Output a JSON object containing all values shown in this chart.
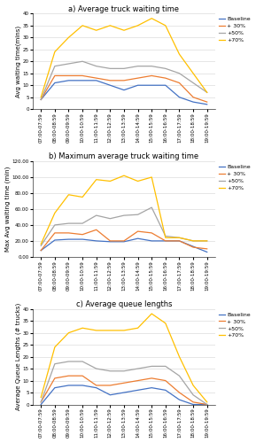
{
  "title_a": "a) Average truck waiting time",
  "title_b": "b) Maximum average truck waiting time",
  "title_c": "c) Average queue lengths",
  "ylabel_a": "Avg waiting time(mins)",
  "ylabel_b": "Max Avg waiting time (min)",
  "ylabel_c": "Average Queue Lengths (# trucks)",
  "x_labels": [
    "07:00-07:59",
    "08:00-08:59",
    "09:00-09:59",
    "10:00-10:59",
    "11:00-11:59",
    "12:00-12:59",
    "13:00-13:59",
    "14:00-14:59",
    "15:00-15:59",
    "16:00-16:59",
    "17:00-17:59",
    "18:00-18:59",
    "19:00-19:59"
  ],
  "legend_labels": [
    "Baseline",
    "+ 30%",
    "+50%",
    "+70%"
  ],
  "colors": [
    "#4472C4",
    "#ED7D31",
    "#A5A5A5",
    "#FFC000"
  ],
  "chart_a": {
    "baseline": [
      4,
      11,
      12,
      12,
      12,
      10,
      8,
      10,
      10,
      10,
      5,
      3,
      2
    ],
    "p30": [
      4,
      14,
      14,
      14,
      13,
      12,
      12,
      13,
      14,
      13,
      11,
      5,
      3
    ],
    "p50": [
      4,
      18,
      19,
      20,
      18,
      17,
      17,
      18,
      18,
      17,
      15,
      11,
      7
    ],
    "p70": [
      5,
      24,
      30,
      35,
      33,
      35,
      33,
      35,
      38,
      35,
      23,
      15,
      7
    ]
  },
  "chart_b": {
    "baseline": [
      8,
      21,
      22,
      22,
      20,
      19,
      19,
      23,
      20,
      20,
      20,
      13,
      6
    ],
    "p30": [
      8,
      30,
      30,
      28,
      34,
      20,
      20,
      32,
      30,
      20,
      20,
      12,
      10
    ],
    "p50": [
      14,
      40,
      42,
      42,
      52,
      48,
      52,
      53,
      62,
      26,
      24,
      20,
      20
    ],
    "p70": [
      16,
      55,
      78,
      75,
      97,
      95,
      102,
      95,
      100,
      24,
      24,
      20,
      20
    ]
  },
  "chart_c": {
    "baseline": [
      0,
      7,
      8,
      8,
      7,
      4,
      5,
      6,
      7,
      6,
      2,
      0,
      0
    ],
    "p30": [
      1,
      11,
      12,
      12,
      8,
      8,
      9,
      10,
      11,
      10,
      5,
      1,
      0
    ],
    "p50": [
      1,
      17,
      18,
      18,
      15,
      14,
      14,
      15,
      16,
      16,
      12,
      4,
      0
    ],
    "p70": [
      3,
      24,
      30,
      32,
      31,
      31,
      31,
      32,
      38,
      34,
      20,
      8,
      1
    ]
  },
  "ylim_a": [
    0,
    40
  ],
  "ylim_b": [
    0,
    120
  ],
  "ylim_c": [
    0,
    40
  ],
  "yticks_a": [
    0,
    5,
    10,
    15,
    20,
    25,
    30,
    35,
    40
  ],
  "yticks_b": [
    0.0,
    20.0,
    40.0,
    60.0,
    80.0,
    100.0,
    120.0
  ],
  "yticks_c": [
    0,
    5,
    10,
    15,
    20,
    25,
    30,
    35,
    40
  ],
  "background_color": "#FFFFFF",
  "title_fontsize": 6.0,
  "axis_label_fontsize": 5.0,
  "tick_fontsize": 4.0,
  "legend_fontsize": 4.5,
  "linewidth": 0.9,
  "markersize": 0
}
